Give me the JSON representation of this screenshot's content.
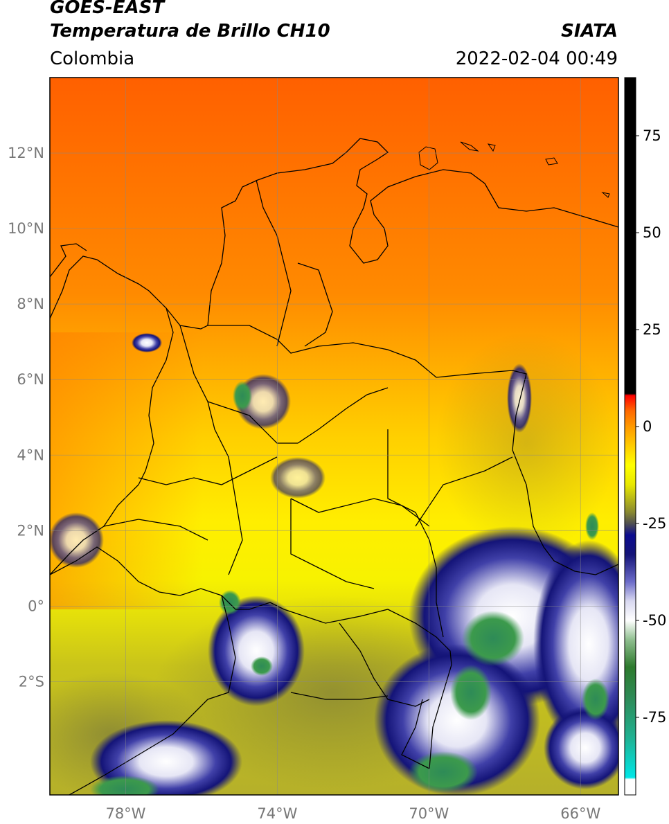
{
  "header": {
    "satellite": "GOES-EAST",
    "product": "Temperatura de Brillo CH10",
    "region": "Colombia",
    "agency": "SIATA",
    "datetime": "2022-02-04 00:49"
  },
  "map": {
    "lon_range": [
      -80,
      -65
    ],
    "lat_range": [
      -5,
      14
    ],
    "lat_ticks": [
      {
        "value": 12,
        "label": "12°N"
      },
      {
        "value": 10,
        "label": "10°N"
      },
      {
        "value": 8,
        "label": "8°N"
      },
      {
        "value": 6,
        "label": "6°N"
      },
      {
        "value": 4,
        "label": "4°N"
      },
      {
        "value": 2,
        "label": "2°N"
      },
      {
        "value": 0,
        "label": "0°"
      },
      {
        "value": -2,
        "label": "2°S"
      }
    ],
    "lon_ticks": [
      {
        "value": -78,
        "label": "78°W"
      },
      {
        "value": -74,
        "label": "74°W"
      },
      {
        "value": -70,
        "label": "70°W"
      },
      {
        "value": -66,
        "label": "66°W"
      }
    ],
    "grid": true
  },
  "colorbar": {
    "range": [
      -95,
      90
    ],
    "ticks": [
      {
        "value": 75,
        "label": "75"
      },
      {
        "value": 50,
        "label": "50"
      },
      {
        "value": 25,
        "label": "25"
      },
      {
        "value": 0,
        "label": "0"
      },
      {
        "value": -25,
        "label": "-25"
      },
      {
        "value": -50,
        "label": "-50"
      },
      {
        "value": -75,
        "label": "-75"
      }
    ],
    "stops": [
      {
        "value": -95,
        "color": "#ffffff"
      },
      {
        "value": -91,
        "color": "#ffffff"
      },
      {
        "value": -90.5,
        "color": "#00e6e6"
      },
      {
        "value": -80,
        "color": "#20b090"
      },
      {
        "value": -70,
        "color": "#2e8b57"
      },
      {
        "value": -62,
        "color": "#2d7a2d"
      },
      {
        "value": -55,
        "color": "#8fbf8f"
      },
      {
        "value": -50,
        "color": "#ffffff"
      },
      {
        "value": -45,
        "color": "#d8d8f0"
      },
      {
        "value": -40,
        "color": "#6b6bc8"
      },
      {
        "value": -33,
        "color": "#141478"
      },
      {
        "value": -28,
        "color": "#0c0c90"
      },
      {
        "value": -25,
        "color": "#505050"
      },
      {
        "value": -22,
        "color": "#8a8a30"
      },
      {
        "value": -15,
        "color": "#e8e800"
      },
      {
        "value": -10,
        "color": "#ffff00"
      },
      {
        "value": 0,
        "color": "#ff9a00"
      },
      {
        "value": 4,
        "color": "#ff6a00"
      },
      {
        "value": 8,
        "color": "#ff0000"
      },
      {
        "value": 8.5,
        "color": "#000000"
      },
      {
        "value": 90,
        "color": "#000000"
      }
    ]
  }
}
